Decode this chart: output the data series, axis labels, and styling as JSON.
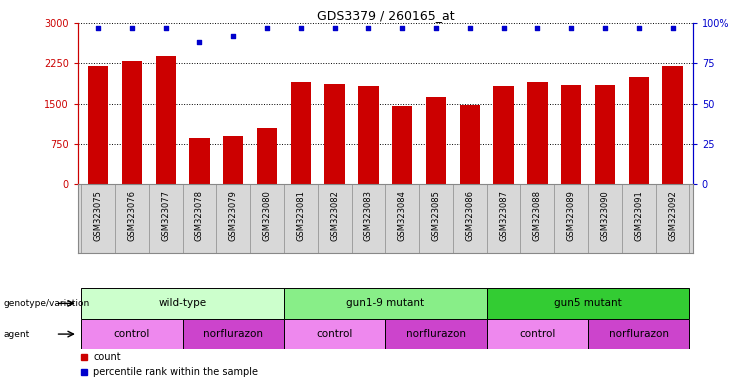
{
  "title": "GDS3379 / 260165_at",
  "samples": [
    "GSM323075",
    "GSM323076",
    "GSM323077",
    "GSM323078",
    "GSM323079",
    "GSM323080",
    "GSM323081",
    "GSM323082",
    "GSM323083",
    "GSM323084",
    "GSM323085",
    "GSM323086",
    "GSM323087",
    "GSM323088",
    "GSM323089",
    "GSM323090",
    "GSM323091",
    "GSM323092"
  ],
  "counts": [
    2200,
    2300,
    2380,
    870,
    900,
    1050,
    1900,
    1870,
    1820,
    1460,
    1620,
    1480,
    1820,
    1900,
    1840,
    1840,
    2000,
    2200
  ],
  "percentile_ranks": [
    97,
    97,
    97,
    88,
    92,
    97,
    97,
    97,
    97,
    97,
    97,
    97,
    97,
    97,
    97,
    97,
    97,
    97
  ],
  "bar_color": "#cc0000",
  "dot_color": "#0000cc",
  "ylim_left": [
    0,
    3000
  ],
  "ylim_right": [
    0,
    100
  ],
  "yticks_left": [
    0,
    750,
    1500,
    2250,
    3000
  ],
  "yticks_right": [
    0,
    25,
    50,
    75,
    100
  ],
  "ytick_labels_right": [
    "0",
    "25",
    "50",
    "75",
    "100%"
  ],
  "groups": [
    {
      "label": "wild-type",
      "start": 0,
      "end": 5,
      "color": "#ccffcc"
    },
    {
      "label": "gun1-9 mutant",
      "start": 6,
      "end": 11,
      "color": "#88ee88"
    },
    {
      "label": "gun5 mutant",
      "start": 12,
      "end": 17,
      "color": "#33cc33"
    }
  ],
  "agents": [
    {
      "label": "control",
      "start": 0,
      "end": 2,
      "color": "#ee88ee"
    },
    {
      "label": "norflurazon",
      "start": 3,
      "end": 5,
      "color": "#cc44cc"
    },
    {
      "label": "control",
      "start": 6,
      "end": 8,
      "color": "#ee88ee"
    },
    {
      "label": "norflurazon",
      "start": 9,
      "end": 11,
      "color": "#cc44cc"
    },
    {
      "label": "control",
      "start": 12,
      "end": 14,
      "color": "#ee88ee"
    },
    {
      "label": "norflurazon",
      "start": 15,
      "end": 17,
      "color": "#cc44cc"
    }
  ],
  "legend_count_color": "#cc0000",
  "legend_dot_color": "#0000cc",
  "label_area_color": "#d8d8d8",
  "label_border_color": "#888888"
}
